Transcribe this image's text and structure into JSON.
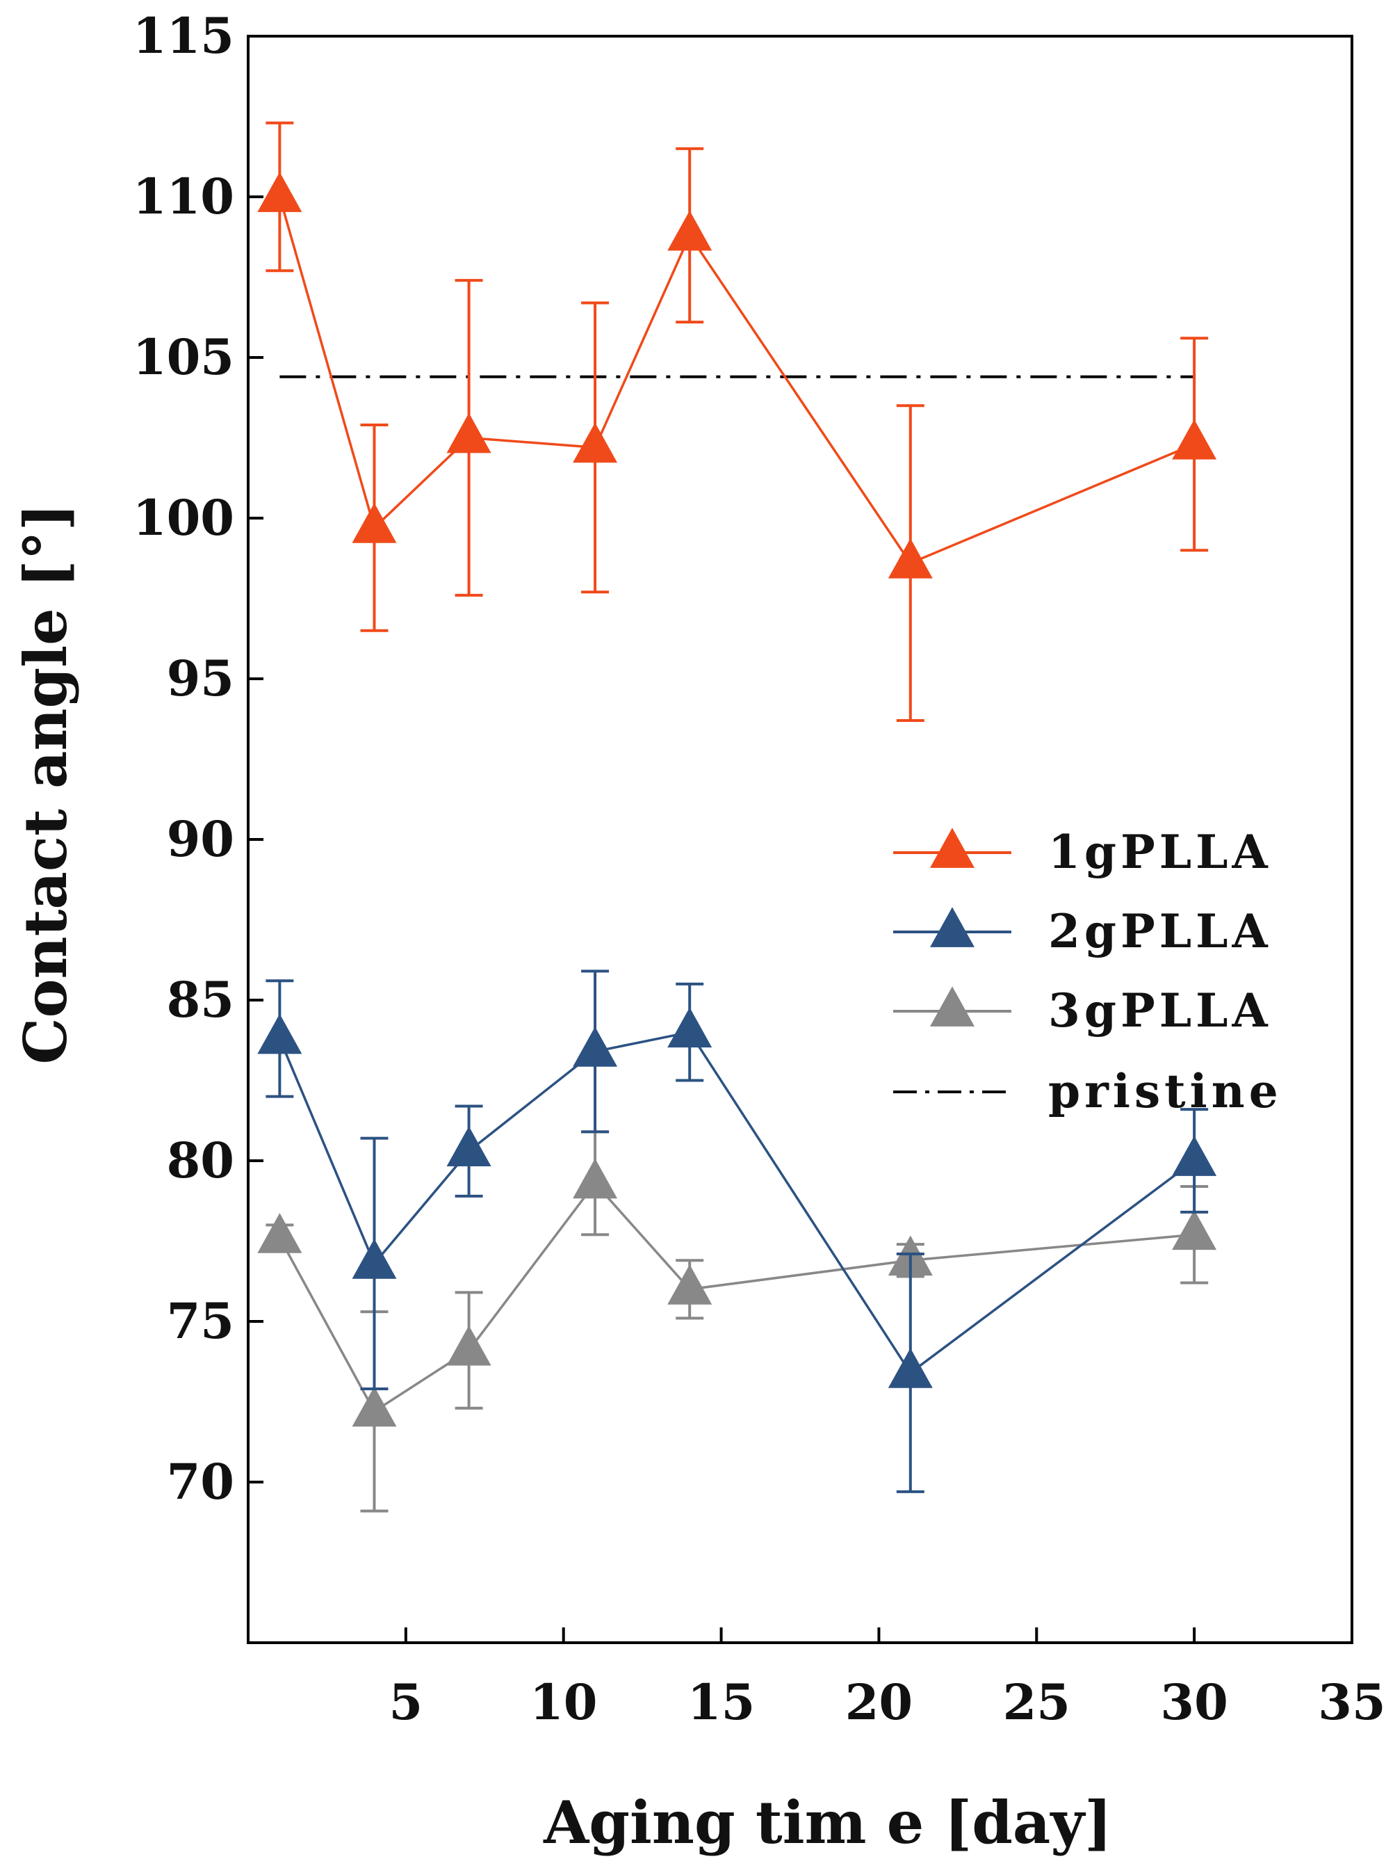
{
  "chart_data": {
    "type": "line",
    "title": "",
    "xlabel": "Aging tim e [day]",
    "ylabel": "Contact angle [°]",
    "xlim": [
      0,
      35
    ],
    "ylim": [
      65,
      115
    ],
    "xticks": [
      5,
      10,
      15,
      20,
      25,
      30,
      35
    ],
    "yticks": [
      70,
      75,
      80,
      85,
      90,
      95,
      100,
      105,
      110,
      115
    ],
    "grid": false,
    "legend_position": "right-middle",
    "x": [
      1,
      4,
      7,
      11,
      14,
      21,
      30
    ],
    "series": [
      {
        "name": "1gPLLA",
        "color": "#f04a1a",
        "marker": "triangle",
        "values": [
          110.0,
          99.7,
          102.5,
          102.2,
          108.8,
          98.6,
          102.3
        ],
        "err_low": [
          2.3,
          3.2,
          4.9,
          4.5,
          2.7,
          4.9,
          3.3
        ],
        "err_high": [
          2.3,
          3.2,
          4.9,
          4.5,
          2.7,
          4.9,
          3.3
        ]
      },
      {
        "name": "2gPLLA",
        "color": "#2c5282",
        "marker": "triangle",
        "values": [
          83.8,
          76.8,
          80.3,
          83.4,
          84.0,
          73.4,
          80.0
        ],
        "err_low": [
          1.8,
          3.9,
          1.4,
          2.5,
          1.5,
          3.7,
          1.6
        ],
        "err_high": [
          1.8,
          3.9,
          1.4,
          2.5,
          1.5,
          3.7,
          1.6
        ]
      },
      {
        "name": "3gPLLA",
        "color": "#888888",
        "marker": "triangle",
        "values": [
          77.6,
          72.2,
          74.1,
          79.3,
          76.0,
          76.9,
          77.7
        ],
        "err_low": [
          0.4,
          3.1,
          1.8,
          1.6,
          0.9,
          0.5,
          1.5
        ],
        "err_high": [
          0.4,
          3.1,
          1.8,
          1.6,
          0.9,
          0.5,
          1.5
        ]
      }
    ],
    "reference_lines": [
      {
        "name": "pristine",
        "value": 104.4,
        "x_range": [
          1,
          30
        ],
        "style": "dash-dot",
        "color": "#000000"
      }
    ]
  }
}
